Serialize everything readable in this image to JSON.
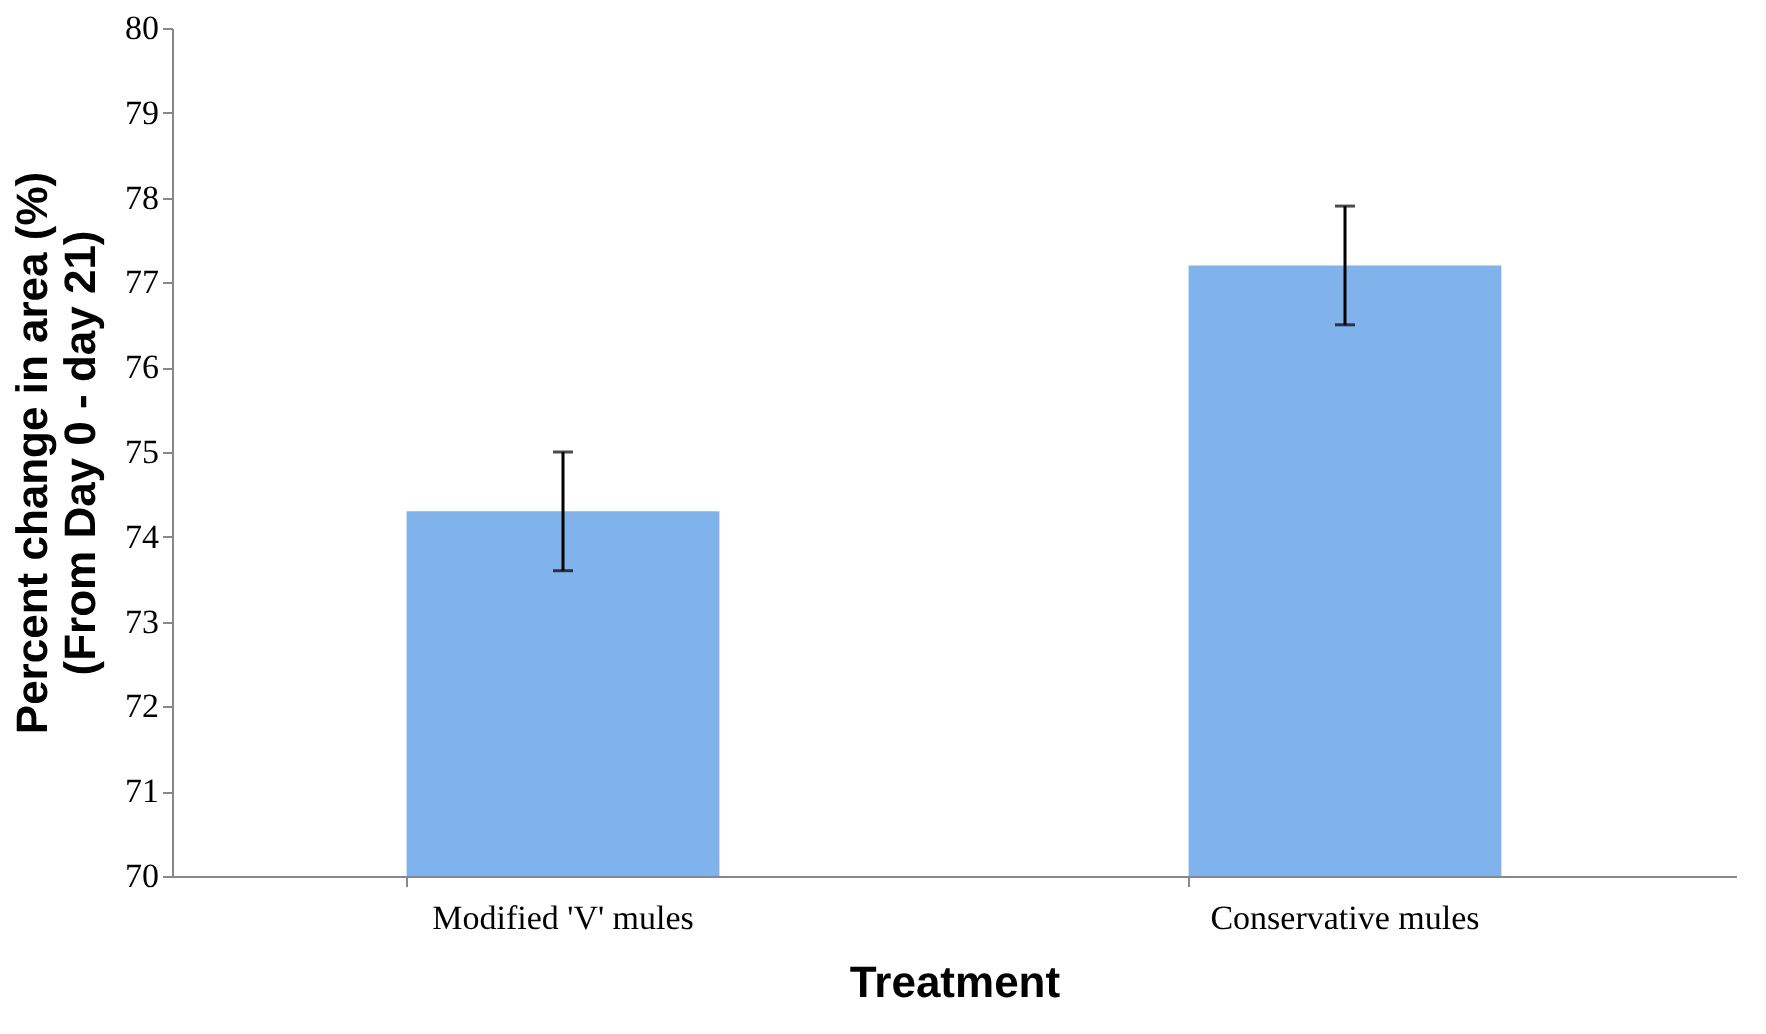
{
  "chart_data": {
    "type": "bar",
    "xlabel": "Treatment",
    "ylabel": "Percent change in area (%)\n(From Day 0 - day 21)",
    "categories": [
      "Modified 'V' mules",
      "Conservative mules"
    ],
    "values": [
      74.3,
      77.2
    ],
    "errors": [
      0.7,
      0.7
    ],
    "color": "#80b3ec",
    "ylim": [
      70,
      80
    ],
    "yticks": [
      70,
      71,
      72,
      73,
      74,
      75,
      76,
      77,
      78,
      79,
      80
    ],
    "grid": false
  }
}
